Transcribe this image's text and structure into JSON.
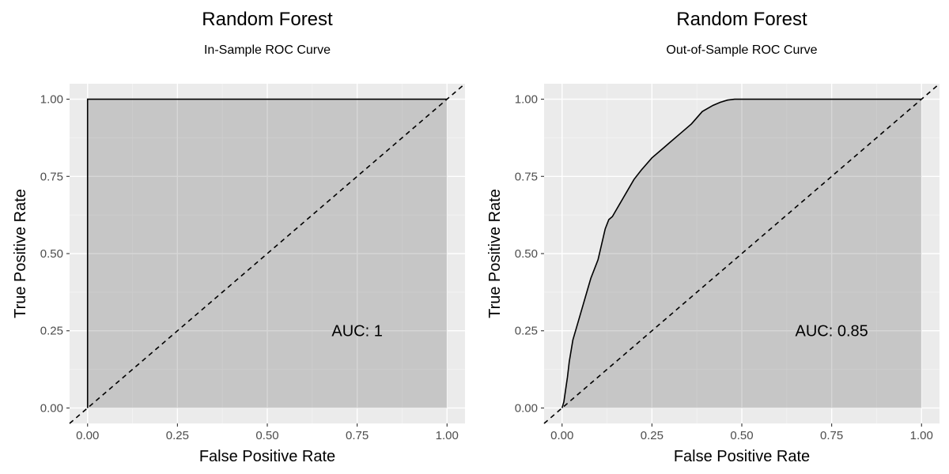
{
  "chart_data": [
    {
      "type": "area",
      "title": "Random Forest",
      "subtitle": "In-Sample ROC Curve",
      "xlabel": "False Positive Rate",
      "ylabel": "True Positive Rate",
      "xlim": [
        0,
        1
      ],
      "ylim": [
        0,
        1
      ],
      "xticks": [
        "0.00",
        "0.25",
        "0.50",
        "0.75",
        "1.00"
      ],
      "yticks": [
        "0.00",
        "0.25",
        "0.50",
        "0.75",
        "1.00"
      ],
      "grid": true,
      "annotation": {
        "text": "AUC: 1",
        "x": 0.75,
        "y": 0.25
      },
      "reference_line": {
        "style": "dashed",
        "points": [
          [
            0,
            0
          ],
          [
            1,
            1
          ]
        ]
      },
      "x": [
        0,
        0,
        1
      ],
      "y": [
        0,
        1,
        1
      ]
    },
    {
      "type": "area",
      "title": "Random Forest",
      "subtitle": "Out-of-Sample ROC Curve",
      "xlabel": "False Positive Rate",
      "ylabel": "True Positive Rate",
      "xlim": [
        0,
        1
      ],
      "ylim": [
        0,
        1
      ],
      "xticks": [
        "0.00",
        "0.25",
        "0.50",
        "0.75",
        "1.00"
      ],
      "yticks": [
        "0.00",
        "0.25",
        "0.50",
        "0.75",
        "1.00"
      ],
      "grid": true,
      "annotation": {
        "text": "AUC: 0.85",
        "x": 0.75,
        "y": 0.25
      },
      "reference_line": {
        "style": "dashed",
        "points": [
          [
            0,
            0
          ],
          [
            1,
            1
          ]
        ]
      },
      "x": [
        0,
        0.005,
        0.01,
        0.015,
        0.02,
        0.03,
        0.04,
        0.05,
        0.06,
        0.07,
        0.08,
        0.09,
        0.1,
        0.11,
        0.12,
        0.13,
        0.14,
        0.15,
        0.16,
        0.17,
        0.18,
        0.2,
        0.22,
        0.25,
        0.28,
        0.3,
        0.33,
        0.36,
        0.39,
        0.42,
        0.44,
        0.46,
        0.48,
        0.5,
        1.0
      ],
      "y": [
        0,
        0.02,
        0.06,
        0.1,
        0.15,
        0.22,
        0.26,
        0.3,
        0.34,
        0.38,
        0.42,
        0.45,
        0.48,
        0.53,
        0.58,
        0.61,
        0.62,
        0.64,
        0.66,
        0.68,
        0.7,
        0.74,
        0.77,
        0.81,
        0.84,
        0.86,
        0.89,
        0.92,
        0.96,
        0.98,
        0.99,
        0.997,
        1.0,
        1.0,
        1.0
      ]
    }
  ]
}
